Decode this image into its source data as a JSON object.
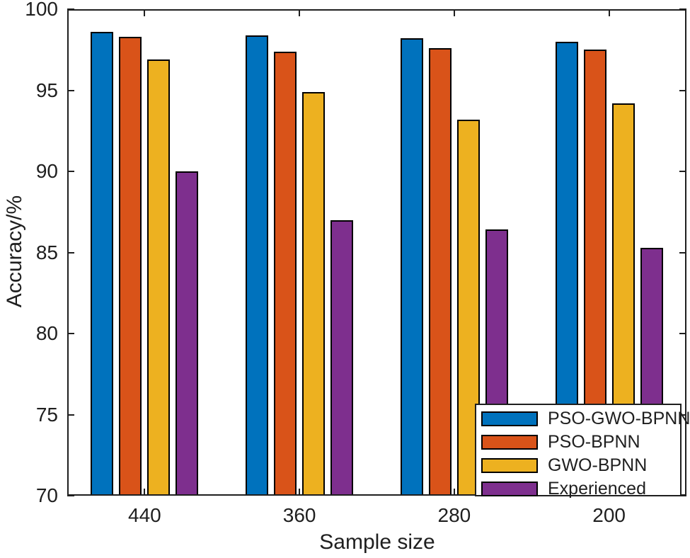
{
  "figure": {
    "background": "#ffffff",
    "axis_color": "#1f1f1f",
    "bar_edge_color": "#000000"
  },
  "chart_data": {
    "type": "bar",
    "title": "",
    "xlabel": "Sample size",
    "ylabel": "Accuracy/%",
    "categories": [
      "440",
      "360",
      "280",
      "200"
    ],
    "series": [
      {
        "name": "PSO-GWO-BPNN",
        "color": "#0072BD",
        "values": [
          98.6,
          98.4,
          98.2,
          98.0
        ]
      },
      {
        "name": "PSO-BPNN",
        "color": "#D95319",
        "values": [
          98.3,
          97.4,
          97.6,
          97.5
        ]
      },
      {
        "name": "GWO-BPNN",
        "color": "#EDB120",
        "values": [
          96.9,
          94.9,
          93.2,
          94.2
        ]
      },
      {
        "name": "Experienced",
        "color": "#7E2F8E",
        "values": [
          90.0,
          87.0,
          86.4,
          85.3
        ]
      }
    ],
    "ylim": [
      70,
      100
    ],
    "yticks": [
      70,
      75,
      80,
      85,
      90,
      95,
      100
    ],
    "grid": false,
    "legend_position": "bottom-right"
  }
}
